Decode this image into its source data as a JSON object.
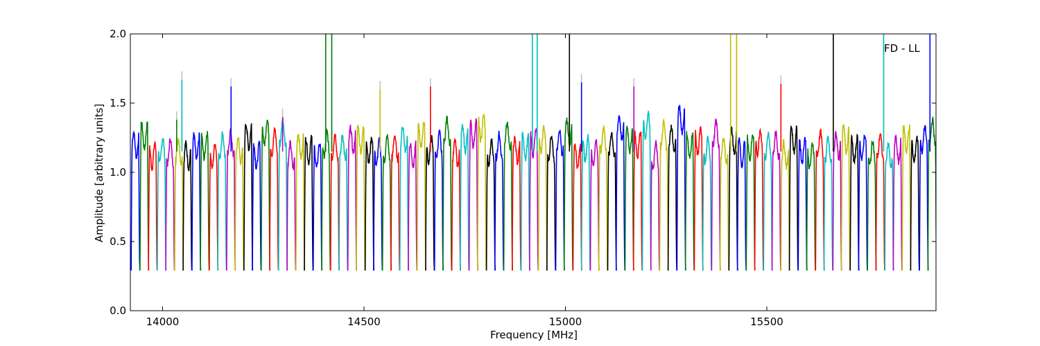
{
  "chart_data": {
    "type": "line",
    "xlabel": "Frequency [MHz]",
    "ylabel": "Amplitude [arbitrary units]",
    "xlim": [
      13920,
      15920
    ],
    "ylim": [
      0.0,
      2.0
    ],
    "x_ticks": [
      {
        "value": 14000,
        "label": "14000"
      },
      {
        "value": 14500,
        "label": "14500"
      },
      {
        "value": 15000,
        "label": "15000"
      },
      {
        "value": 15500,
        "label": "15500"
      }
    ],
    "y_ticks": [
      {
        "value": 0.0,
        "label": "0.0"
      },
      {
        "value": 0.5,
        "label": "0.5"
      },
      {
        "value": 1.0,
        "label": "1.0"
      },
      {
        "value": 1.5,
        "label": "1.5"
      },
      {
        "value": 2.0,
        "label": "2.0"
      }
    ],
    "annotation": "FD - LL",
    "grid": false,
    "legend": "none",
    "segment_width": 21.5,
    "baseline_level": 0.29,
    "colors": [
      "#0000ff",
      "#007f00",
      "#ff0000",
      "#00bfbf",
      "#bf00bf",
      "#bfbf00",
      "#000000"
    ],
    "spike_color": "#bfbfbf",
    "segments": [
      {
        "start": 13922,
        "level": 1.26,
        "color": "#0000ff"
      },
      {
        "start": 13944,
        "level": 1.32,
        "color": "#007f00"
      },
      {
        "start": 13965,
        "level": 1.18,
        "color": "#ff0000"
      },
      {
        "start": 13987,
        "level": 1.22,
        "color": "#00bfbf"
      },
      {
        "start": 14008,
        "level": 1.21,
        "color": "#bf00bf"
      },
      {
        "start": 14030,
        "level": 1.22,
        "color": "#bfbf00"
      },
      {
        "start": 14051,
        "level": 1.18,
        "color": "#000000"
      },
      {
        "start": 14073,
        "level": 1.24,
        "color": "#0000ff"
      },
      {
        "start": 14094,
        "level": 1.25,
        "color": "#007f00"
      },
      {
        "start": 14116,
        "level": 1.18,
        "color": "#ff0000"
      },
      {
        "start": 14137,
        "level": 1.25,
        "color": "#00bfbf"
      },
      {
        "start": 14159,
        "level": 1.27,
        "color": "#bf00bf"
      },
      {
        "start": 14180,
        "level": 1.22,
        "color": "#bfbf00"
      },
      {
        "start": 14202,
        "level": 1.32,
        "color": "#000000"
      },
      {
        "start": 14223,
        "level": 1.18,
        "color": "#0000ff"
      },
      {
        "start": 14245,
        "level": 1.35,
        "color": "#007f00"
      },
      {
        "start": 14266,
        "level": 1.28,
        "color": "#ff0000"
      },
      {
        "start": 14288,
        "level": 1.35,
        "color": "#00bfbf"
      },
      {
        "start": 14309,
        "level": 1.18,
        "color": "#bf00bf"
      },
      {
        "start": 14331,
        "level": 1.25,
        "color": "#bfbf00"
      },
      {
        "start": 14352,
        "level": 1.22,
        "color": "#000000"
      },
      {
        "start": 14374,
        "level": 1.18,
        "color": "#0000ff"
      },
      {
        "start": 14395,
        "level": 1.26,
        "color": "#007f00"
      },
      {
        "start": 14417,
        "level": 1.25,
        "color": "#ff0000"
      },
      {
        "start": 14438,
        "level": 1.24,
        "color": "#00bfbf"
      },
      {
        "start": 14460,
        "level": 1.29,
        "color": "#bf00bf"
      },
      {
        "start": 14481,
        "level": 1.3,
        "color": "#bfbf00"
      },
      {
        "start": 14503,
        "level": 1.22,
        "color": "#000000"
      },
      {
        "start": 14524,
        "level": 1.2,
        "color": "#0000ff"
      },
      {
        "start": 14546,
        "level": 1.23,
        "color": "#007f00"
      },
      {
        "start": 14567,
        "level": 1.24,
        "color": "#ff0000"
      },
      {
        "start": 14589,
        "level": 1.3,
        "color": "#00bfbf"
      },
      {
        "start": 14610,
        "level": 1.18,
        "color": "#bf00bf"
      },
      {
        "start": 14632,
        "level": 1.33,
        "color": "#bfbf00"
      },
      {
        "start": 14653,
        "level": 1.22,
        "color": "#000000"
      },
      {
        "start": 14675,
        "level": 1.26,
        "color": "#0000ff"
      },
      {
        "start": 14696,
        "level": 1.36,
        "color": "#007f00"
      },
      {
        "start": 14718,
        "level": 1.2,
        "color": "#ff0000"
      },
      {
        "start": 14739,
        "level": 1.3,
        "color": "#00bfbf"
      },
      {
        "start": 14761,
        "level": 1.34,
        "color": "#bf00bf"
      },
      {
        "start": 14782,
        "level": 1.38,
        "color": "#bfbf00"
      },
      {
        "start": 14804,
        "level": 1.2,
        "color": "#000000"
      },
      {
        "start": 14825,
        "level": 1.25,
        "color": "#0000ff"
      },
      {
        "start": 14847,
        "level": 1.32,
        "color": "#007f00"
      },
      {
        "start": 14868,
        "level": 1.22,
        "color": "#ff0000"
      },
      {
        "start": 14890,
        "level": 1.24,
        "color": "#00bfbf"
      },
      {
        "start": 14911,
        "level": 1.27,
        "color": "#bf00bf"
      },
      {
        "start": 14933,
        "level": 1.3,
        "color": "#bfbf00"
      },
      {
        "start": 14954,
        "level": 1.24,
        "color": "#000000"
      },
      {
        "start": 14976,
        "level": 1.28,
        "color": "#0000ff"
      },
      {
        "start": 14997,
        "level": 1.35,
        "color": "#007f00"
      },
      {
        "start": 15019,
        "level": 1.18,
        "color": "#ff0000"
      },
      {
        "start": 15040,
        "level": 1.23,
        "color": "#00bfbf"
      },
      {
        "start": 15062,
        "level": 1.2,
        "color": "#bf00bf"
      },
      {
        "start": 15083,
        "level": 1.3,
        "color": "#bfbf00"
      },
      {
        "start": 15105,
        "level": 1.26,
        "color": "#000000"
      },
      {
        "start": 15126,
        "level": 1.38,
        "color": "#0000ff"
      },
      {
        "start": 15148,
        "level": 1.3,
        "color": "#007f00"
      },
      {
        "start": 15169,
        "level": 1.26,
        "color": "#ff0000"
      },
      {
        "start": 15191,
        "level": 1.4,
        "color": "#00bfbf"
      },
      {
        "start": 15212,
        "level": 1.18,
        "color": "#bf00bf"
      },
      {
        "start": 15234,
        "level": 1.33,
        "color": "#bfbf00"
      },
      {
        "start": 15255,
        "level": 1.3,
        "color": "#000000"
      },
      {
        "start": 15277,
        "level": 1.44,
        "color": "#0000ff"
      },
      {
        "start": 15298,
        "level": 1.25,
        "color": "#007f00"
      },
      {
        "start": 15320,
        "level": 1.28,
        "color": "#ff0000"
      },
      {
        "start": 15341,
        "level": 1.22,
        "color": "#00bfbf"
      },
      {
        "start": 15363,
        "level": 1.34,
        "color": "#bf00bf"
      },
      {
        "start": 15384,
        "level": 1.22,
        "color": "#bfbf00"
      },
      {
        "start": 15406,
        "level": 1.28,
        "color": "#000000"
      },
      {
        "start": 15427,
        "level": 1.2,
        "color": "#0000ff"
      },
      {
        "start": 15449,
        "level": 1.24,
        "color": "#007f00"
      },
      {
        "start": 15470,
        "level": 1.28,
        "color": "#ff0000"
      },
      {
        "start": 15492,
        "level": 1.25,
        "color": "#00bfbf"
      },
      {
        "start": 15513,
        "level": 1.26,
        "color": "#bf00bf"
      },
      {
        "start": 15535,
        "level": 1.19,
        "color": "#bfbf00"
      },
      {
        "start": 15556,
        "level": 1.3,
        "color": "#000000"
      },
      {
        "start": 15578,
        "level": 1.22,
        "color": "#0000ff"
      },
      {
        "start": 15599,
        "level": 1.18,
        "color": "#007f00"
      },
      {
        "start": 15621,
        "level": 1.27,
        "color": "#ff0000"
      },
      {
        "start": 15642,
        "level": 1.22,
        "color": "#00bfbf"
      },
      {
        "start": 15664,
        "level": 1.25,
        "color": "#bf00bf"
      },
      {
        "start": 15685,
        "level": 1.3,
        "color": "#bfbf00"
      },
      {
        "start": 15707,
        "level": 1.22,
        "color": "#000000"
      },
      {
        "start": 15728,
        "level": 1.24,
        "color": "#0000ff"
      },
      {
        "start": 15750,
        "level": 1.2,
        "color": "#007f00"
      },
      {
        "start": 15771,
        "level": 1.25,
        "color": "#ff0000"
      },
      {
        "start": 15793,
        "level": 1.18,
        "color": "#00bfbf"
      },
      {
        "start": 15814,
        "level": 1.22,
        "color": "#bf00bf"
      },
      {
        "start": 15836,
        "level": 1.3,
        "color": "#bfbf00"
      },
      {
        "start": 15857,
        "level": 1.22,
        "color": "#000000"
      },
      {
        "start": 15879,
        "level": 1.3,
        "color": "#0000ff"
      },
      {
        "start": 15900,
        "level": 1.35,
        "color": "#007f00"
      }
    ],
    "spikes": [
      {
        "x": 14035,
        "y": 1.38,
        "color": "#007f00"
      },
      {
        "x": 14048,
        "y": 1.67,
        "color": "#00bfbf"
      },
      {
        "x": 14170,
        "y": 1.62,
        "color": "#0000ff"
      },
      {
        "x": 14298,
        "y": 1.4,
        "color": "#bf00bf"
      },
      {
        "x": 14405,
        "y": 2.0,
        "color": "#007f00"
      },
      {
        "x": 14420,
        "y": 2.0,
        "color": "#007f00"
      },
      {
        "x": 14540,
        "y": 1.6,
        "color": "#bfbf00"
      },
      {
        "x": 14665,
        "y": 1.62,
        "color": "#ff0000"
      },
      {
        "x": 14918,
        "y": 2.0,
        "color": "#00bfbf"
      },
      {
        "x": 14930,
        "y": 2.0,
        "color": "#00bfbf"
      },
      {
        "x": 15010,
        "y": 2.0,
        "color": "#000000"
      },
      {
        "x": 15040,
        "y": 1.65,
        "color": "#0000ff"
      },
      {
        "x": 15170,
        "y": 1.62,
        "color": "#bf00bf"
      },
      {
        "x": 15410,
        "y": 2.0,
        "color": "#bfbf00"
      },
      {
        "x": 15425,
        "y": 2.0,
        "color": "#bfbf00"
      },
      {
        "x": 15535,
        "y": 1.64,
        "color": "#ff0000"
      },
      {
        "x": 15665,
        "y": 2.0,
        "color": "#000000"
      },
      {
        "x": 15790,
        "y": 2.0,
        "color": "#00bfbf"
      },
      {
        "x": 15905,
        "y": 2.0,
        "color": "#0000ff"
      }
    ]
  }
}
